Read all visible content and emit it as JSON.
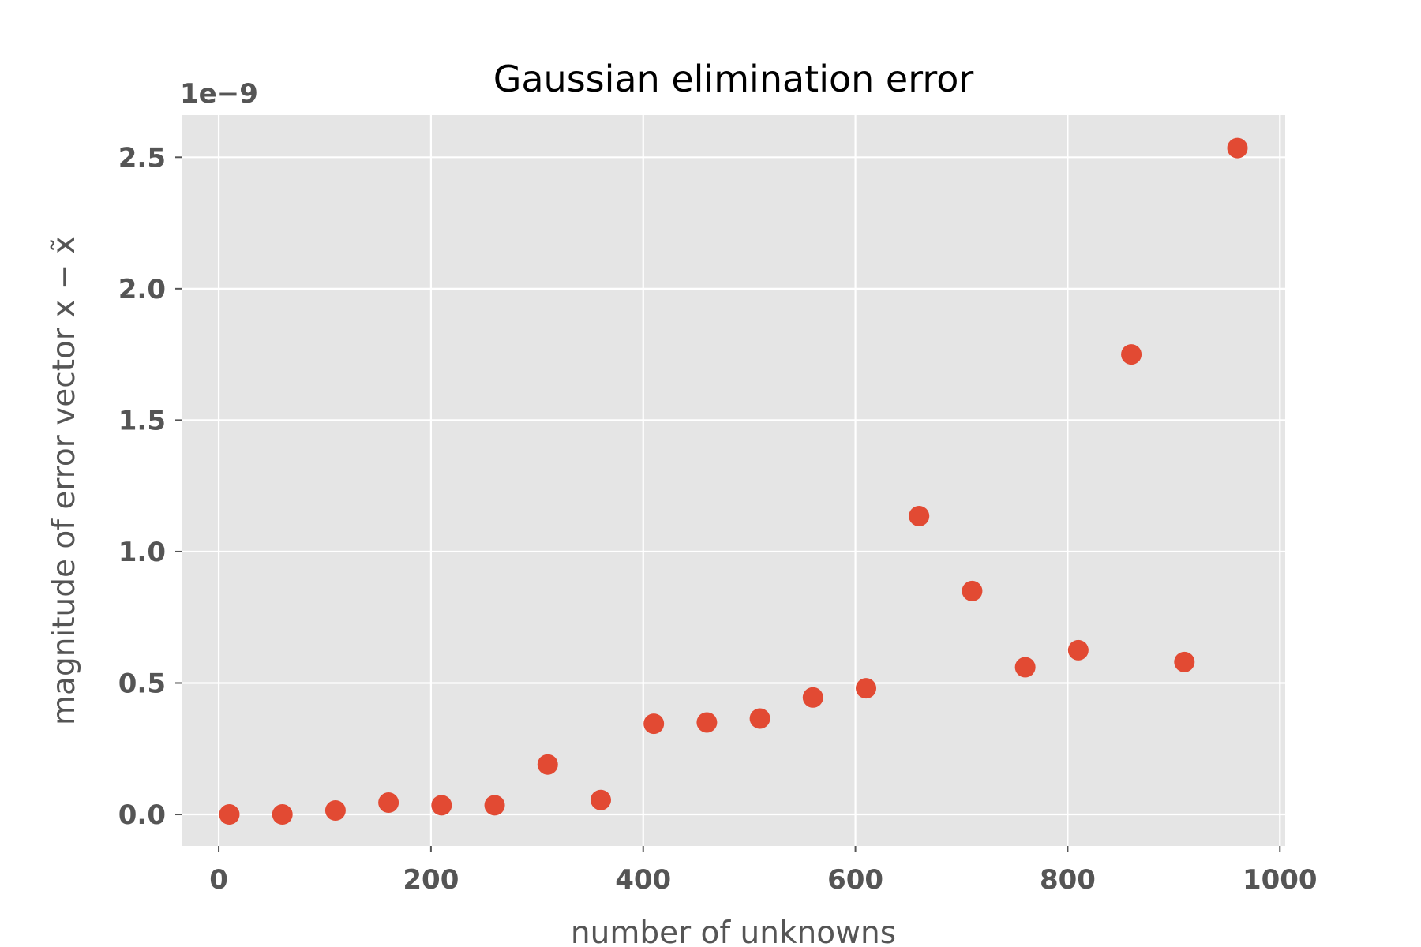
{
  "chart_data": {
    "type": "scatter",
    "title": "Gaussian elimination error",
    "xlabel": "number of unknowns",
    "ylabel": "magnitude of error vector x − x̃",
    "y_offset_label": "1e−9",
    "xlim": [
      -35,
      1005
    ],
    "ylim": [
      -0.12,
      2.66
    ],
    "x_ticks": [
      0,
      200,
      400,
      600,
      800,
      1000
    ],
    "x_tick_labels": [
      "0",
      "200",
      "400",
      "600",
      "800",
      "1000"
    ],
    "y_ticks": [
      0.0,
      0.5,
      1.0,
      1.5,
      2.0,
      2.5
    ],
    "y_tick_labels": [
      "0.0",
      "0.5",
      "1.0",
      "1.5",
      "2.0",
      "2.5"
    ],
    "y_scale_factor": 1e-09,
    "grid": true,
    "style": "ggplot",
    "colors": {
      "axes_background": "#E5E5E5",
      "grid": "#FFFFFF",
      "marker": "#E24A33",
      "tick_text": "#555555",
      "title_text": "#000000"
    },
    "series": [
      {
        "x": [
          10,
          60,
          110,
          160,
          210,
          260,
          310,
          360,
          410,
          460,
          510,
          560,
          610,
          660,
          710,
          760,
          810,
          860,
          910,
          960
        ],
        "y": [
          0.0,
          0.0,
          0.015,
          0.045,
          0.035,
          0.035,
          0.19,
          0.055,
          0.345,
          0.35,
          0.365,
          0.445,
          0.48,
          1.135,
          0.85,
          0.56,
          0.625,
          1.75,
          0.58,
          2.535
        ]
      }
    ]
  }
}
